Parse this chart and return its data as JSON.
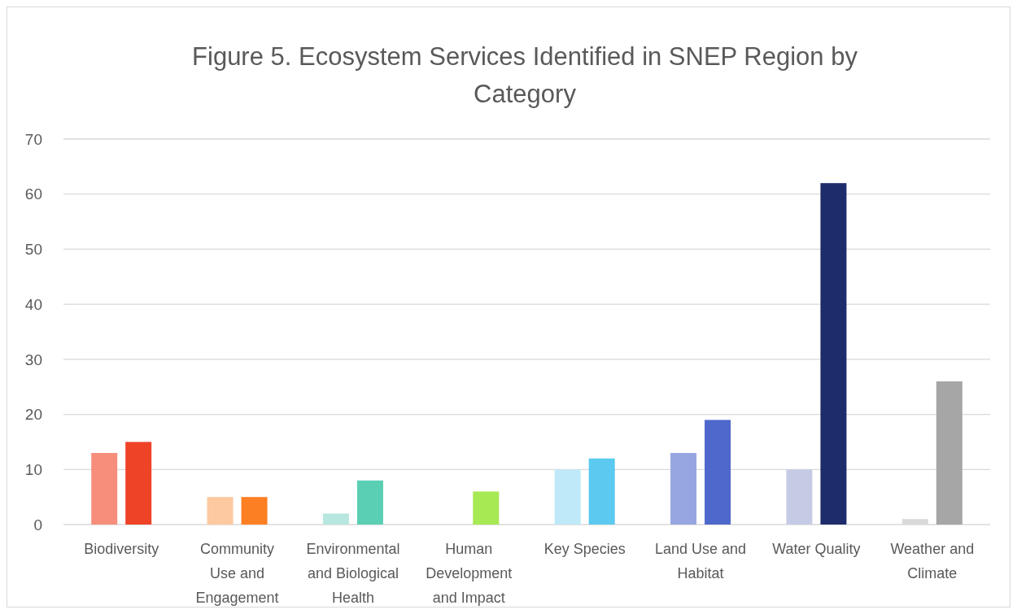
{
  "chart_data": {
    "type": "bar",
    "title": "Figure 5. Ecosystem Services Identified in SNEP Region by Category",
    "categories": [
      "Biodiversity",
      "Community Use and Engagement",
      "Environmental and Biological Health",
      "Human Development and Impact",
      "Key Species",
      "Land Use and Habitat",
      "Water Quality",
      "Weather and Climate"
    ],
    "series": [
      {
        "values": [
          13,
          5,
          2,
          0,
          10,
          13,
          10,
          1
        ],
        "colors": [
          "#f68e7b",
          "#fdc9a0",
          "#b7e7df",
          "#c9f3a4",
          "#bfe9f8",
          "#97a6e0",
          "#c6cbe5",
          "#d9d9d9"
        ]
      },
      {
        "values": [
          15,
          5,
          8,
          6,
          12,
          19,
          62,
          26
        ],
        "colors": [
          "#ef4328",
          "#fd7f24",
          "#5bcfb3",
          "#a6e952",
          "#5bc9f0",
          "#4e68cb",
          "#1f2c6b",
          "#a6a6a6"
        ]
      }
    ],
    "ylim": [
      0,
      70
    ],
    "yticks": [
      0,
      10,
      20,
      30,
      40,
      50,
      60,
      70
    ],
    "grid": "y"
  }
}
